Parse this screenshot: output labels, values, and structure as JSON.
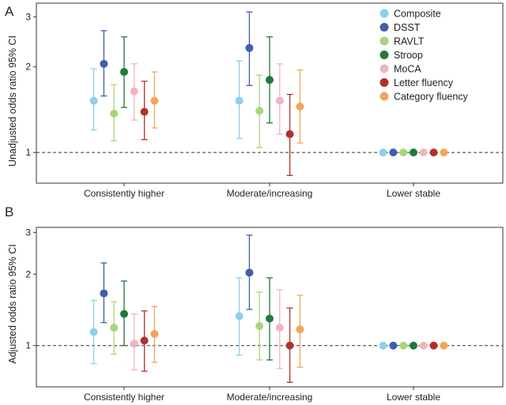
{
  "chart_data": [
    {
      "type": "scatter",
      "panel_label": "A",
      "ylabel": "Unadjusted odds ratio 95% CI",
      "y_scale": "log",
      "ylim": [
        0.78,
        3.35
      ],
      "yticks": [
        1,
        2,
        3
      ],
      "categories": [
        "Consistently higher",
        "Moderate/increasing",
        "Lower stable"
      ],
      "reference_line": 1,
      "series": [
        {
          "name": "Composite",
          "color": "#8ecfee",
          "values": [
            1.52,
            1.52,
            1.0
          ],
          "lower": [
            1.2,
            1.12,
            null
          ],
          "upper": [
            1.97,
            2.1,
            null
          ]
        },
        {
          "name": "DSST",
          "color": "#3f5fab",
          "values": [
            2.05,
            2.33,
            1.0
          ],
          "lower": [
            1.58,
            1.72,
            null
          ],
          "upper": [
            2.68,
            3.12,
            null
          ]
        },
        {
          "name": "RAVLT",
          "color": "#a9d57a",
          "values": [
            1.37,
            1.4,
            1.0
          ],
          "lower": [
            1.1,
            1.04,
            null
          ],
          "upper": [
            1.73,
            1.87,
            null
          ]
        },
        {
          "name": "Stroop",
          "color": "#23793c",
          "values": [
            1.92,
            1.8,
            1.0
          ],
          "lower": [
            1.44,
            1.27,
            null
          ],
          "upper": [
            2.55,
            2.55,
            null
          ]
        },
        {
          "name": "MoCA",
          "color": "#f3b3c1",
          "values": [
            1.64,
            1.52,
            1.0
          ],
          "lower": [
            1.3,
            1.16,
            null
          ],
          "upper": [
            2.05,
            2.05,
            null
          ]
        },
        {
          "name": "Letter fluency",
          "color": "#b2302b",
          "values": [
            1.39,
            1.16,
            1.0
          ],
          "lower": [
            1.11,
            0.83,
            null
          ],
          "upper": [
            1.78,
            1.6,
            null
          ]
        },
        {
          "name": "Category fluency",
          "color": "#f2a55a",
          "values": [
            1.52,
            1.45,
            1.0
          ],
          "lower": [
            1.22,
            1.08,
            null
          ],
          "upper": [
            1.92,
            1.95,
            null
          ]
        }
      ]
    },
    {
      "type": "scatter",
      "panel_label": "B",
      "ylabel": "Adjusted odds ratio 95% CI",
      "y_scale": "log",
      "ylim": [
        0.67,
        3.15
      ],
      "yticks": [
        1,
        2,
        3
      ],
      "categories": [
        "Consistently higher",
        "Moderate/increasing",
        "Lower stable"
      ],
      "reference_line": 1,
      "series": [
        {
          "name": "Composite",
          "color": "#8ecfee",
          "values": [
            1.14,
            1.33,
            1.0
          ],
          "lower": [
            0.84,
            0.91,
            null
          ],
          "upper": [
            1.55,
            1.93,
            null
          ]
        },
        {
          "name": "DSST",
          "color": "#3f5fab",
          "values": [
            1.66,
            2.03,
            1.0
          ],
          "lower": [
            1.25,
            1.42,
            null
          ],
          "upper": [
            2.23,
            2.92,
            null
          ]
        },
        {
          "name": "RAVLT",
          "color": "#a9d57a",
          "values": [
            1.19,
            1.21,
            1.0
          ],
          "lower": [
            0.92,
            0.87,
            null
          ],
          "upper": [
            1.53,
            1.68,
            null
          ]
        },
        {
          "name": "Stroop",
          "color": "#23793c",
          "values": [
            1.36,
            1.3,
            1.0
          ],
          "lower": [
            1.0,
            0.87,
            null
          ],
          "upper": [
            1.87,
            1.93,
            null
          ]
        },
        {
          "name": "MoCA",
          "color": "#f3b3c1",
          "values": [
            1.02,
            1.19,
            1.0
          ],
          "lower": [
            0.79,
            0.8,
            null
          ],
          "upper": [
            1.36,
            1.72,
            null
          ]
        },
        {
          "name": "Letter fluency",
          "color": "#b2302b",
          "values": [
            1.05,
            1.0,
            1.0
          ],
          "lower": [
            0.78,
            0.7,
            null
          ],
          "upper": [
            1.4,
            1.44,
            null
          ]
        },
        {
          "name": "Category fluency",
          "color": "#f2a55a",
          "values": [
            1.12,
            1.17,
            1.0
          ],
          "lower": [
            0.85,
            0.81,
            null
          ],
          "upper": [
            1.46,
            1.63,
            null
          ]
        }
      ]
    }
  ],
  "legend": {
    "placement": "top-right",
    "entries": [
      {
        "name": "Composite",
        "color": "#8ecfee"
      },
      {
        "name": "DSST",
        "color": "#3f5fab"
      },
      {
        "name": "RAVLT",
        "color": "#a9d57a"
      },
      {
        "name": "Stroop",
        "color": "#23793c"
      },
      {
        "name": "MoCA",
        "color": "#f3b3c1"
      },
      {
        "name": "Letter fluency",
        "color": "#b2302b"
      },
      {
        "name": "Category fluency",
        "color": "#f2a55a"
      }
    ]
  }
}
